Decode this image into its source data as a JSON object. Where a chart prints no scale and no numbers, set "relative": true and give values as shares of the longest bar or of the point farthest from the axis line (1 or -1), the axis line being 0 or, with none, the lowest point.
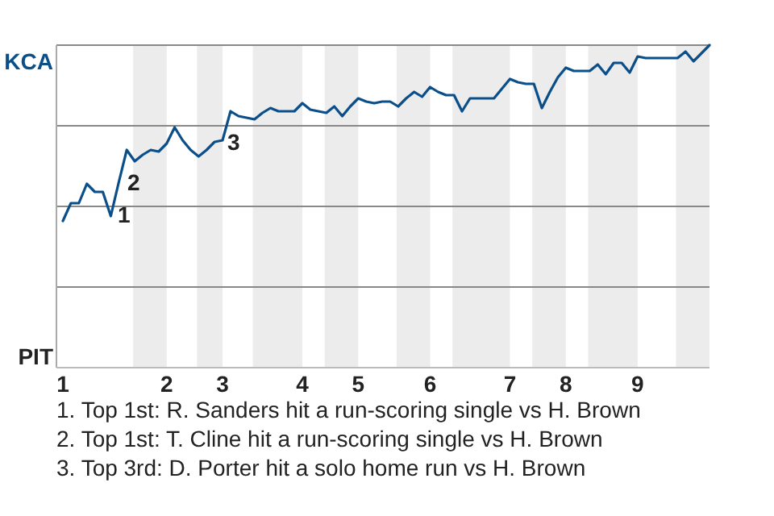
{
  "chart_data": {
    "type": "line",
    "relative": true,
    "categories": [
      "1",
      null,
      null,
      null,
      null,
      null,
      null,
      null,
      null,
      null,
      null,
      null,
      null,
      "2",
      null,
      null,
      null,
      null,
      null,
      null,
      "3",
      null,
      null,
      null,
      null,
      null,
      null,
      null,
      null,
      null,
      "4",
      null,
      null,
      null,
      null,
      null,
      null,
      "5",
      null,
      null,
      null,
      null,
      null,
      null,
      null,
      null,
      "6",
      null,
      null,
      null,
      null,
      null,
      null,
      null,
      null,
      null,
      "7",
      null,
      null,
      null,
      null,
      null,
      null,
      "8",
      null,
      null,
      null,
      null,
      null,
      null,
      null,
      null,
      "9",
      null,
      null,
      null,
      null,
      null,
      null,
      null,
      null,
      null
    ],
    "marker": "none",
    "line_style": "solid",
    "ref_lines": [
      {
        "axis": "y",
        "value": 0.5,
        "color": "#888888"
      },
      {
        "axis": "y",
        "value": 0,
        "color": "#888888"
      },
      {
        "axis": "y",
        "value": -0.5,
        "color": "#888888"
      }
    ],
    "series": [
      {
        "color": "#0b4f8a",
        "values": [
          -0.09,
          0.02,
          0.02,
          0.14,
          0.09,
          0.09,
          -0.06,
          0.15,
          0.35,
          0.28,
          0.32,
          0.35,
          0.34,
          0.39,
          0.49,
          0.41,
          0.35,
          0.31,
          0.35,
          0.4,
          0.41,
          0.59,
          0.56,
          0.55,
          0.54,
          0.58,
          0.61,
          0.59,
          0.59,
          0.59,
          0.64,
          0.6,
          0.59,
          0.58,
          0.62,
          0.56,
          0.62,
          0.67,
          0.65,
          0.64,
          0.65,
          0.65,
          0.62,
          0.67,
          0.71,
          0.68,
          0.74,
          0.71,
          0.69,
          0.69,
          0.59,
          0.67,
          0.67,
          0.67,
          0.67,
          0.73,
          0.79,
          0.77,
          0.76,
          0.76,
          0.61,
          0.71,
          0.8,
          0.86,
          0.84,
          0.84,
          0.84,
          0.88,
          0.82,
          0.89,
          0.89,
          0.83,
          0.93,
          0.92,
          0.92,
          0.92,
          0.92,
          0.92,
          0.96,
          0.9,
          0.95,
          1.0
        ]
      }
    ],
    "annotations": [
      "KCA",
      "PIT",
      "1",
      "2",
      "3",
      "1. Top 1st: R. Sanders hit a run-scoring single vs H. Brown",
      "2. Top 1st: T. Cline hit a run-scoring single vs H. Brown",
      "3. Top 3rd: D. Porter hit a solo home run vs H. Brown"
    ]
  }
}
